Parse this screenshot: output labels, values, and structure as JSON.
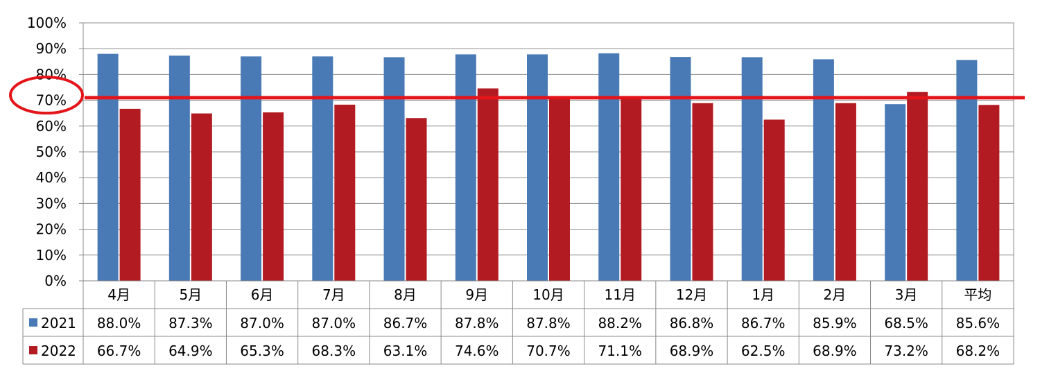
{
  "chart_data": {
    "type": "bar",
    "categories": [
      "4月",
      "5月",
      "6月",
      "7月",
      "8月",
      "9月",
      "10月",
      "11月",
      "12月",
      "1月",
      "2月",
      "3月",
      "平均"
    ],
    "series": [
      {
        "name": "2021",
        "color": "#4a7ab5",
        "values": [
          88.0,
          87.3,
          87.0,
          87.0,
          86.7,
          87.8,
          87.8,
          88.2,
          86.8,
          86.7,
          85.9,
          68.5,
          85.6
        ],
        "labels": [
          "88.0%",
          "87.3%",
          "87.0%",
          "87.0%",
          "86.7%",
          "87.8%",
          "87.8%",
          "88.2%",
          "86.8%",
          "86.7%",
          "85.9%",
          "68.5%",
          "85.6%"
        ]
      },
      {
        "name": "2022",
        "color": "#b31b23",
        "values": [
          66.7,
          64.9,
          65.3,
          68.3,
          63.1,
          74.6,
          70.7,
          71.1,
          68.9,
          62.5,
          68.9,
          73.2,
          68.2
        ],
        "labels": [
          "66.7%",
          "64.9%",
          "65.3%",
          "68.3%",
          "63.1%",
          "74.6%",
          "70.7%",
          "71.1%",
          "68.9%",
          "62.5%",
          "68.9%",
          "73.2%",
          "68.2%"
        ]
      }
    ],
    "ylim": [
      0,
      100
    ],
    "yticks": [
      "0%",
      "10%",
      "20%",
      "30%",
      "40%",
      "50%",
      "60%",
      "70%",
      "80%",
      "90%",
      "100%"
    ],
    "grid": true,
    "legend": "data-table",
    "annotations": {
      "reference_line": {
        "value": 71,
        "color": "#e3151a"
      },
      "highlight_circle": {
        "target_tick": "70%",
        "color": "#e3151a"
      }
    }
  }
}
